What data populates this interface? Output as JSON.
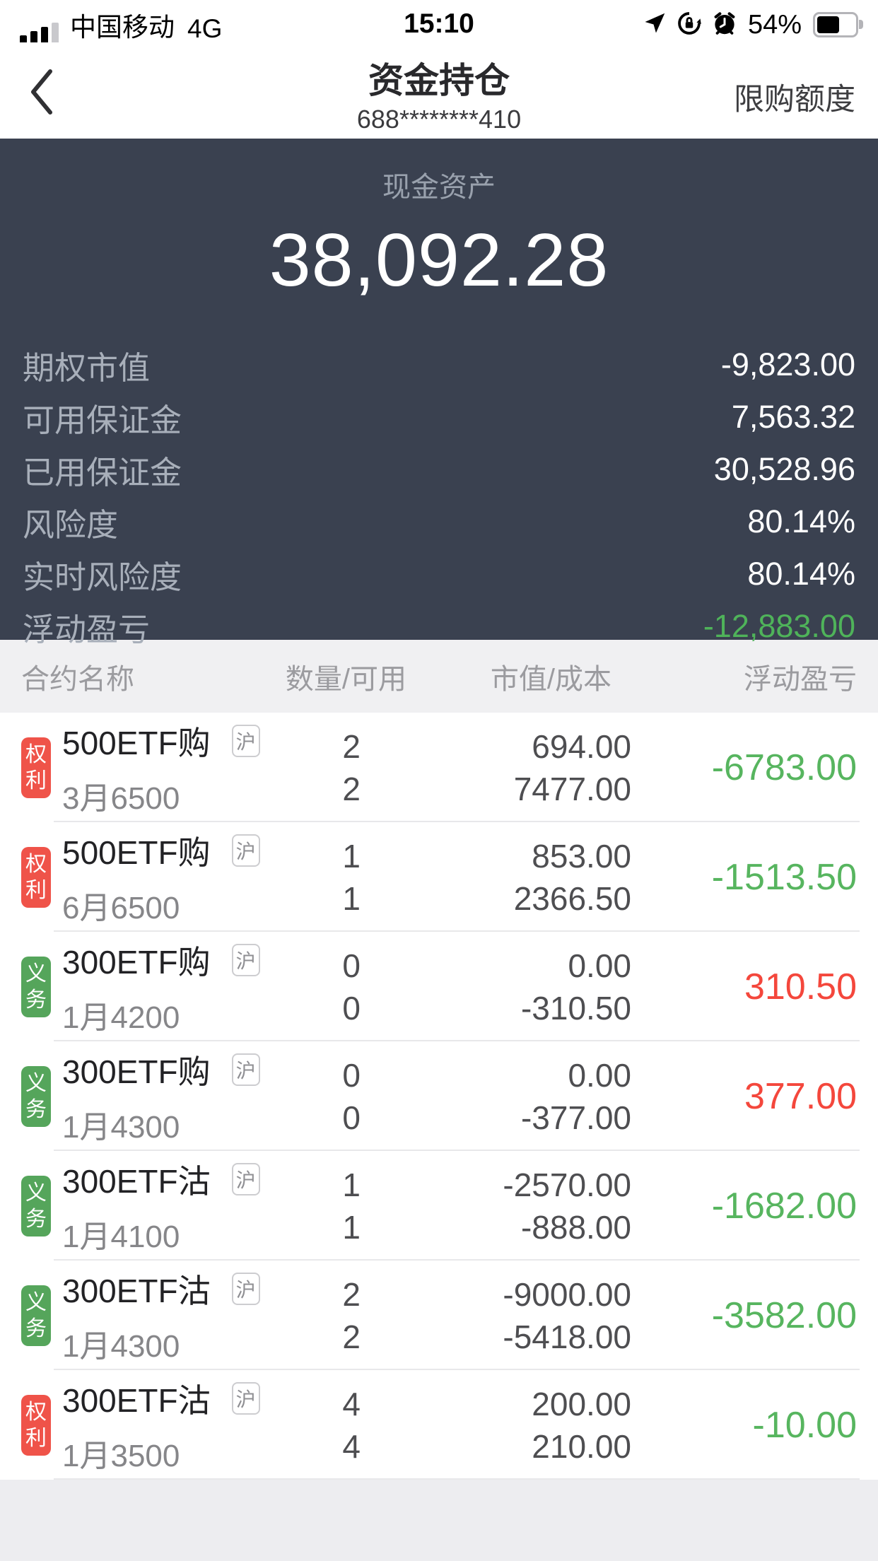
{
  "status_bar": {
    "carrier": "中国移动",
    "network": "4G",
    "time": "15:10",
    "battery_percent": "54%",
    "battery_level": 54,
    "icons": [
      "cellular-signal",
      "location-arrow",
      "orientation-lock",
      "alarm-clock",
      "battery"
    ]
  },
  "nav": {
    "back_icon": "chevron-left",
    "title": "资金持仓",
    "account_masked": "688********410",
    "right_action": "限购额度"
  },
  "summary": {
    "cash_label": "现金资产",
    "cash_value": "38,092.28",
    "rows": [
      {
        "label": "期权市值",
        "value": "-9,823.00",
        "value_class": "plain"
      },
      {
        "label": "可用保证金",
        "value": "7,563.32",
        "value_class": "plain"
      },
      {
        "label": "已用保证金",
        "value": "30,528.96",
        "value_class": "plain"
      },
      {
        "label": "风险度",
        "value": "80.14%",
        "value_class": "plain"
      },
      {
        "label": "实时风险度",
        "value": "80.14%",
        "value_class": "plain"
      },
      {
        "label": "浮动盈亏",
        "value": "-12,883.00",
        "value_class": "green"
      }
    ]
  },
  "table": {
    "headers": [
      "合约名称",
      "数量/可用",
      "市值/成本",
      "浮动盈亏"
    ],
    "rows": [
      {
        "badge": "权利",
        "badge_class": "red",
        "name": "500ETF购",
        "exchange": "沪",
        "sub": "3月6500",
        "quantity": "2",
        "available": "2",
        "market_value": "694.00",
        "cost": "7477.00",
        "floating_pl": "-6783.00",
        "pl_class": "green"
      },
      {
        "badge": "权利",
        "badge_class": "red",
        "name": "500ETF购",
        "exchange": "沪",
        "sub": "6月6500",
        "quantity": "1",
        "available": "1",
        "market_value": "853.00",
        "cost": "2366.50",
        "floating_pl": "-1513.50",
        "pl_class": "green"
      },
      {
        "badge": "义务",
        "badge_class": "green",
        "name": "300ETF购",
        "exchange": "沪",
        "sub": "1月4200",
        "quantity": "0",
        "available": "0",
        "market_value": "0.00",
        "cost": "-310.50",
        "floating_pl": "310.50",
        "pl_class": "red"
      },
      {
        "badge": "义务",
        "badge_class": "green",
        "name": "300ETF购",
        "exchange": "沪",
        "sub": "1月4300",
        "quantity": "0",
        "available": "0",
        "market_value": "0.00",
        "cost": "-377.00",
        "floating_pl": "377.00",
        "pl_class": "red"
      },
      {
        "badge": "义务",
        "badge_class": "green",
        "name": "300ETF沽",
        "exchange": "沪",
        "sub": "1月4100",
        "quantity": "1",
        "available": "1",
        "market_value": "-2570.00",
        "cost": "-888.00",
        "floating_pl": "-1682.00",
        "pl_class": "green"
      },
      {
        "badge": "义务",
        "badge_class": "green",
        "name": "300ETF沽",
        "exchange": "沪",
        "sub": "1月4300",
        "quantity": "2",
        "available": "2",
        "market_value": "-9000.00",
        "cost": "-5418.00",
        "floating_pl": "-3582.00",
        "pl_class": "green"
      },
      {
        "badge": "权利",
        "badge_class": "red",
        "name": "300ETF沽",
        "exchange": "沪",
        "sub": "1月3500",
        "quantity": "4",
        "available": "4",
        "market_value": "200.00",
        "cost": "210.00",
        "floating_pl": "-10.00",
        "pl_class": "green"
      }
    ]
  },
  "colors": {
    "panel_bg": "#3a4150",
    "gain_red": "#f4473c",
    "loss_green": "#55b25c",
    "badge_red": "#ef5349",
    "badge_green": "#55a55b",
    "header_bg": "#f0f0f2"
  }
}
